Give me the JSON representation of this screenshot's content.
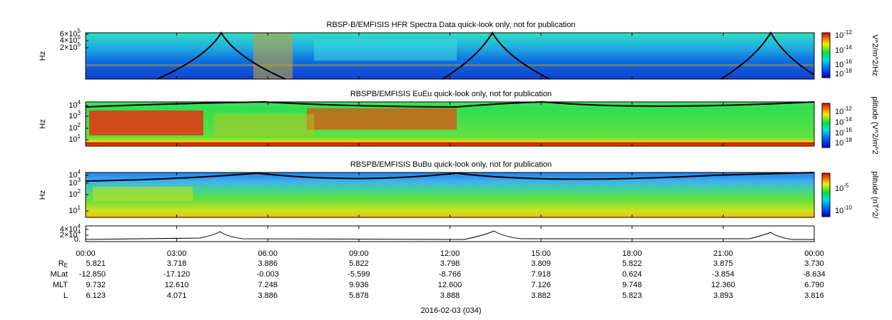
{
  "panels": [
    {
      "title": "RBSP-B/EMFISIS  HFR Spectra Data quick-look only, not for publication",
      "ylabel": "Hz",
      "yticks": [
        {
          "base": "6×10",
          "exp": "5"
        },
        {
          "base": "4×10",
          "exp": "5"
        },
        {
          "base": "2×10",
          "exp": "5"
        }
      ],
      "colorbar": {
        "label": "V^2/m^2/Hz",
        "ticks": [
          {
            "base": "10",
            "exp": "-12"
          },
          {
            "base": "10",
            "exp": "-14"
          },
          {
            "base": "10",
            "exp": "-16"
          },
          {
            "base": "10",
            "exp": "-18"
          }
        ]
      }
    },
    {
      "title": "RBSPB/EMFISIS  EuEu quick-look only, not for publication",
      "ylabel": "Hz",
      "yticks": [
        {
          "base": "10",
          "exp": "4"
        },
        {
          "base": "10",
          "exp": "3"
        },
        {
          "base": "10",
          "exp": "2"
        },
        {
          "base": "10",
          "exp": "1"
        }
      ],
      "colorbar": {
        "label": "plitude (V^2/m^2",
        "ticks": [
          {
            "base": "10",
            "exp": "-12"
          },
          {
            "base": "10",
            "exp": "-14"
          },
          {
            "base": "10",
            "exp": "-16"
          },
          {
            "base": "10",
            "exp": "-18"
          }
        ]
      }
    },
    {
      "title": "RBSPB/EMFISIS  BuBu quick-look only, not for publication",
      "ylabel": "Hz",
      "yticks": [
        {
          "base": "10",
          "exp": "4"
        },
        {
          "base": "10",
          "exp": "3"
        },
        {
          "base": "10",
          "exp": "2"
        },
        {
          "base": "10",
          "exp": "1"
        }
      ],
      "colorbar": {
        "label": "plitude (nT^2/",
        "ticks": [
          {
            "base": "10",
            "exp": "-5"
          },
          {
            "base": "10",
            "exp": "-10"
          }
        ]
      }
    },
    {
      "yticks": [
        {
          "base": "4×10",
          "exp": "4"
        },
        {
          "base": "2×10",
          "exp": "4"
        },
        {
          "base": "0."
        }
      ]
    }
  ],
  "xticks": [
    "00:00",
    "03:00",
    "06:00",
    "09:00",
    "12:00",
    "15:00",
    "18:00",
    "21:00",
    "00:00"
  ],
  "ephemeris": {
    "rows": [
      {
        "label": "R",
        "sub": "E",
        "values": [
          "5.821",
          "3.718",
          "3.886",
          "5.822",
          "3.798",
          "3.809",
          "5.822",
          "3.875",
          "3.730"
        ]
      },
      {
        "label": "MLat",
        "values": [
          "-12.850",
          "-17.120",
          "-0.003",
          "-5.599",
          "-8.766",
          "7.918",
          "0.624",
          "-3.854",
          "-8.634"
        ]
      },
      {
        "label": "MLT",
        "values": [
          "9.732",
          "12.610",
          "7.248",
          "9.936",
          "12.600",
          "7.126",
          "9.748",
          "12.360",
          "6.790"
        ]
      },
      {
        "label": "L",
        "values": [
          "6.123",
          "4.071",
          "3.886",
          "5.878",
          "3.888",
          "3.882",
          "5.823",
          "3.893",
          "3.816"
        ]
      }
    ]
  },
  "footer": "2016-02-03 (034)"
}
